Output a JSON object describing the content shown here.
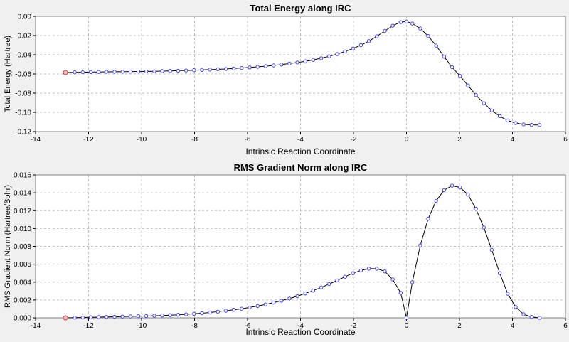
{
  "colors": {
    "background": "#f0f0f0",
    "plot_area": "#ffffff",
    "grid": "#c0c0c0",
    "line": "#000000",
    "marker": "#4040ff",
    "first_marker": "#e04040"
  },
  "chart_data": [
    {
      "type": "line",
      "title": "Total Energy along IRC",
      "xlabel": "Intrinsic Reaction Coordinate",
      "ylabel": "Total Energy (Hartree)",
      "xlim": [
        -14,
        6
      ],
      "ylim": [
        -0.12,
        0.0
      ],
      "grid": true,
      "marker": "open-circle",
      "xticks": [
        "-14",
        "-12",
        "-10",
        "-8",
        "-6",
        "-4",
        "-2",
        "0",
        "2",
        "4",
        "6"
      ],
      "yticks": [
        "0.00",
        "-0.02",
        "-0.04",
        "-0.06",
        "-0.08",
        "-0.10",
        "-0.12"
      ],
      "x": [
        -12.87,
        -12.52,
        -12.22,
        -11.92,
        -11.62,
        -11.32,
        -11.02,
        -10.72,
        -10.42,
        -10.12,
        -9.82,
        -9.52,
        -9.22,
        -8.92,
        -8.62,
        -8.32,
        -8.02,
        -7.72,
        -7.42,
        -7.12,
        -6.82,
        -6.52,
        -6.22,
        -5.92,
        -5.62,
        -5.32,
        -5.02,
        -4.72,
        -4.42,
        -4.12,
        -3.82,
        -3.52,
        -3.22,
        -2.92,
        -2.62,
        -2.32,
        -2.02,
        -1.72,
        -1.42,
        -1.12,
        -0.82,
        -0.52,
        -0.22,
        0.0,
        0.22,
        0.52,
        0.82,
        1.12,
        1.42,
        1.72,
        2.02,
        2.32,
        2.62,
        2.92,
        3.22,
        3.52,
        3.82,
        4.12,
        4.42,
        4.72,
        5.02
      ],
      "y": [
        -0.0585,
        -0.0583,
        -0.0582,
        -0.058,
        -0.0579,
        -0.0578,
        -0.0577,
        -0.0576,
        -0.0575,
        -0.0574,
        -0.0573,
        -0.0572,
        -0.057,
        -0.0568,
        -0.0566,
        -0.0564,
        -0.0561,
        -0.0558,
        -0.0555,
        -0.0552,
        -0.0548,
        -0.0543,
        -0.0538,
        -0.0532,
        -0.0526,
        -0.0519,
        -0.0511,
        -0.0502,
        -0.0492,
        -0.0481,
        -0.0468,
        -0.0453,
        -0.0436,
        -0.0416,
        -0.0393,
        -0.0366,
        -0.0335,
        -0.03,
        -0.0258,
        -0.0208,
        -0.0152,
        -0.0098,
        -0.006,
        -0.0053,
        -0.0075,
        -0.0127,
        -0.0205,
        -0.0305,
        -0.042,
        -0.053,
        -0.062,
        -0.072,
        -0.082,
        -0.0905,
        -0.098,
        -0.104,
        -0.1085,
        -0.1112,
        -0.1125,
        -0.113,
        -0.1132
      ]
    },
    {
      "type": "line",
      "title": "RMS Gradient Norm along IRC",
      "xlabel": "Intrinsic Reaction Coordinate",
      "ylabel": "RMS Gradient Norm (Hartree/Bohr)",
      "xlim": [
        -14,
        6
      ],
      "ylim": [
        0.0,
        0.016
      ],
      "grid": true,
      "marker": "open-circle",
      "xticks": [
        "-14",
        "-12",
        "-10",
        "-8",
        "-6",
        "-4",
        "-2",
        "0",
        "2",
        "4",
        "6"
      ],
      "yticks": [
        "0.016",
        "0.014",
        "0.012",
        "0.010",
        "0.008",
        "0.006",
        "0.004",
        "0.002",
        "0.000"
      ],
      "x": [
        -12.87,
        -12.52,
        -12.22,
        -11.92,
        -11.62,
        -11.32,
        -11.02,
        -10.72,
        -10.42,
        -10.12,
        -9.82,
        -9.52,
        -9.22,
        -8.92,
        -8.62,
        -8.32,
        -8.02,
        -7.72,
        -7.42,
        -7.12,
        -6.82,
        -6.52,
        -6.22,
        -5.92,
        -5.62,
        -5.32,
        -5.02,
        -4.72,
        -4.42,
        -4.12,
        -3.82,
        -3.52,
        -3.22,
        -2.92,
        -2.62,
        -2.32,
        -2.02,
        -1.72,
        -1.42,
        -1.12,
        -0.82,
        -0.52,
        -0.22,
        0.0,
        0.22,
        0.52,
        0.82,
        1.12,
        1.42,
        1.72,
        2.02,
        2.32,
        2.62,
        2.92,
        3.22,
        3.52,
        3.82,
        4.12,
        4.42,
        4.72,
        5.02
      ],
      "y": [
        0.0,
        2e-05,
        4e-05,
        6e-05,
        8e-05,
        0.0001,
        0.00012,
        0.00014,
        0.00016,
        0.00018,
        0.0002,
        0.00023,
        0.00026,
        0.0003,
        0.00034,
        0.00039,
        0.00045,
        0.00052,
        0.0006,
        0.00069,
        0.00079,
        0.0009,
        0.00102,
        0.00116,
        0.00132,
        0.0015,
        0.0017,
        0.00192,
        0.00216,
        0.00243,
        0.00273,
        0.00305,
        0.0034,
        0.00378,
        0.00418,
        0.0046,
        0.005,
        0.0053,
        0.0055,
        0.0055,
        0.0052,
        0.0043,
        0.0028,
        0.0,
        0.004,
        0.0081,
        0.0111,
        0.0131,
        0.0143,
        0.0148,
        0.0146,
        0.0138,
        0.0122,
        0.0101,
        0.0076,
        0.005,
        0.0027,
        0.0012,
        0.0004,
        0.0001,
        0.0
      ]
    }
  ]
}
